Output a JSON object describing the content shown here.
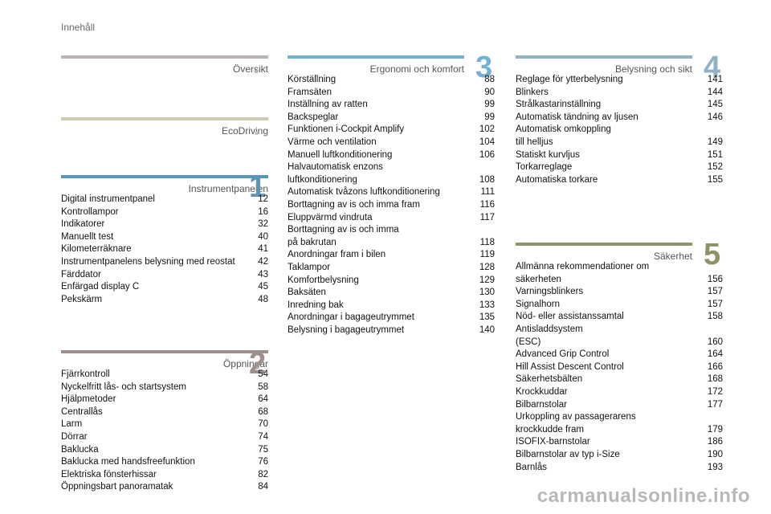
{
  "page_title": "Innehåll",
  "sections": {
    "oversikt": {
      "title": "Översikt",
      "color": "#b9b3b4"
    },
    "ecodriving": {
      "title": "EcoDriving",
      "color": "#cdcbb4"
    },
    "instrument": {
      "title": "Instrumentpanelen",
      "number": "1",
      "color": "#5b95b8",
      "items": [
        {
          "label": "Digital instrumentpanel",
          "page": "12"
        },
        {
          "label": "Kontrollampor",
          "page": "16"
        },
        {
          "label": "Indikatorer",
          "page": "32"
        },
        {
          "label": "Manuellt test",
          "page": "40"
        },
        {
          "label": "Kilometerräknare",
          "page": "41"
        },
        {
          "label": "Instrumentpanelens belysning med reostat",
          "page": "42"
        },
        {
          "label": "Färddator",
          "page": "43"
        },
        {
          "label": "Enfärgad display C",
          "page": "45"
        },
        {
          "label": "Pekskärm",
          "page": "48"
        }
      ]
    },
    "oppningar": {
      "title": "Öppningar",
      "number": "2",
      "color": "#9e8f8b",
      "items": [
        {
          "label": "Fjärrkontroll",
          "page": "54"
        },
        {
          "label": "Nyckelfritt lås- och startsystem",
          "page": "58"
        },
        {
          "label": "Hjälpmetoder",
          "page": "64"
        },
        {
          "label": "Centrallås",
          "page": "68"
        },
        {
          "label": "Larm",
          "page": "70"
        },
        {
          "label": "Dörrar",
          "page": "74"
        },
        {
          "label": "Baklucka",
          "page": "75"
        },
        {
          "label": "Baklucka med handsfreefunktion",
          "page": "76"
        },
        {
          "label": "Elektriska fönsterhissar",
          "page": "82"
        },
        {
          "label": "Öppningsbart panoramatak",
          "page": "84"
        }
      ]
    },
    "ergonomi": {
      "title": "Ergonomi och komfort",
      "number": "3",
      "color": "#74b0d4",
      "items": [
        {
          "label": "Körställning",
          "page": "88"
        },
        {
          "label": "Framsäten",
          "page": "90"
        },
        {
          "label": "Inställning av ratten",
          "page": "99"
        },
        {
          "label": "Backspeglar",
          "page": "99"
        },
        {
          "label": "Funktionen i-Cockpit Amplify",
          "page": "102"
        },
        {
          "label": "Värme och ventilation",
          "page": "104"
        },
        {
          "label": "Manuell luftkonditionering",
          "page": "106"
        },
        {
          "label": "Halvautomatisk enzons\n   luftkonditionering",
          "page": "108"
        },
        {
          "label": "Automatisk tvåzons luftkonditionering",
          "page": "111"
        },
        {
          "label": "Borttagning av is och imma fram",
          "page": "116"
        },
        {
          "label": "Eluppvärmd vindruta",
          "page": "117"
        },
        {
          "label": "Borttagning av is och imma\n   på bakrutan",
          "page": "118"
        },
        {
          "label": "Anordningar fram i bilen",
          "page": "119"
        },
        {
          "label": "Taklampor",
          "page": "128"
        },
        {
          "label": "Komfortbelysning",
          "page": "129"
        },
        {
          "label": "Baksäten",
          "page": "130"
        },
        {
          "label": "Inredning bak",
          "page": "133"
        },
        {
          "label": "Anordningar i bagageutrymmet",
          "page": "135"
        },
        {
          "label": "Belysning i bagageutrymmet",
          "page": "140"
        }
      ]
    },
    "belysning": {
      "title": "Belysning och sikt",
      "number": "4",
      "color": "#8fb2c6",
      "items": [
        {
          "label": "Reglage för ytterbelysning",
          "page": "141"
        },
        {
          "label": "Blinkers",
          "page": "144"
        },
        {
          "label": "Strålkastarinställning",
          "page": "145"
        },
        {
          "label": "Automatisk tändning av ljusen",
          "page": "146"
        },
        {
          "label": "Automatisk omkoppling\n   till helljus",
          "page": "149"
        },
        {
          "label": "Statiskt kurvljus",
          "page": "151"
        },
        {
          "label": "Torkarreglage",
          "page": "152"
        },
        {
          "label": "Automatiska torkare",
          "page": "155"
        }
      ]
    },
    "sakerhet": {
      "title": "Säkerhet",
      "number": "5",
      "color": "#8e9266",
      "items": [
        {
          "label": "Allmänna rekommendationer om\n   säkerheten",
          "page": "156"
        },
        {
          "label": "Varningsblinkers",
          "page": "157"
        },
        {
          "label": "Signalhorn",
          "page": "157"
        },
        {
          "label": "Nöd- eller assistanssamtal",
          "page": "158"
        },
        {
          "label": "Antisladdsystem\n   (ESC)",
          "page": "160"
        },
        {
          "label": "Advanced Grip Control",
          "page": "164"
        },
        {
          "label": "Hill Assist Descent Control",
          "page": "166"
        },
        {
          "label": "Säkerhetsbälten",
          "page": "168"
        },
        {
          "label": "Krockkuddar",
          "page": "172"
        },
        {
          "label": "Bilbarnstolar",
          "page": "177"
        },
        {
          "label": "Urkoppling av passagerarens\n   krockkudde fram",
          "page": "179"
        },
        {
          "label": "ISOFIX-barnstolar",
          "page": "186"
        },
        {
          "label": "Bilbarnstolar av typ i-Size",
          "page": "190"
        },
        {
          "label": "Barnlås",
          "page": "193"
        }
      ]
    }
  },
  "watermark": "carmanualsonline.info"
}
